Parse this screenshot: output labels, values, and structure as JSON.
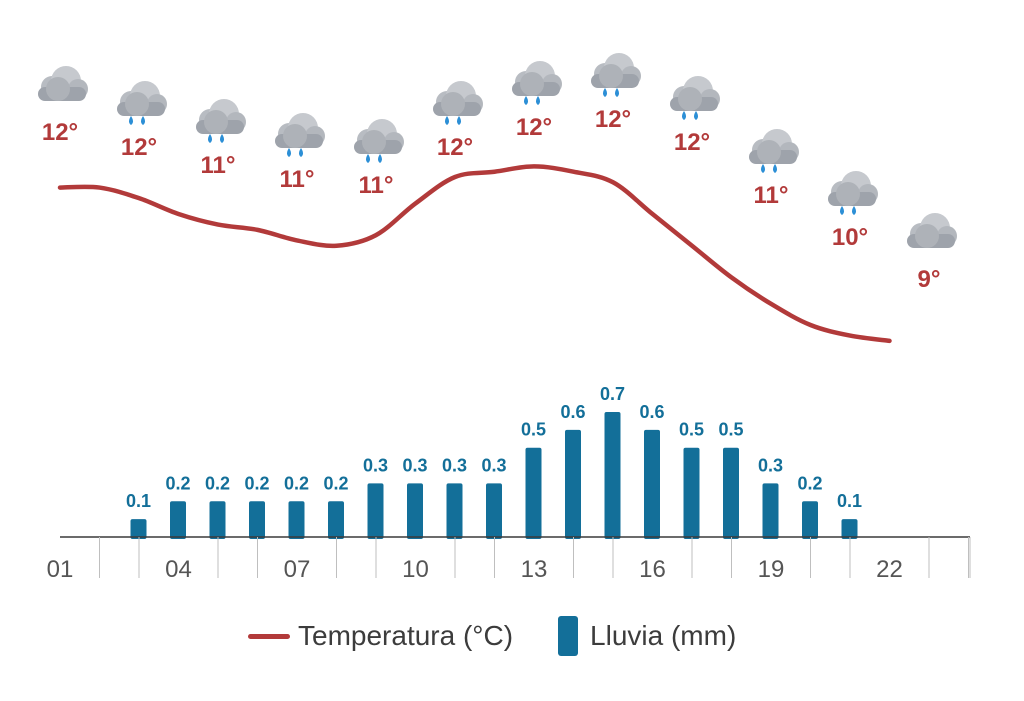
{
  "colors": {
    "temperature": "#b23a3a",
    "rain": "#136f99",
    "axis": "#3a3a3a",
    "tick_text": "#555555"
  },
  "chart_data": {
    "type": "line+bar",
    "x": [
      "01",
      "02",
      "03",
      "04",
      "05",
      "06",
      "07",
      "08",
      "09",
      "10",
      "11",
      "12",
      "13",
      "14",
      "15",
      "16",
      "17",
      "18",
      "19",
      "20",
      "21",
      "22",
      "23",
      "24"
    ],
    "xticks": [
      "01",
      "04",
      "07",
      "10",
      "13",
      "16",
      "19",
      "22"
    ],
    "series": [
      {
        "name": "Temperatura (°C)",
        "type": "line",
        "points": [
          {
            "x": "01",
            "y": 12.1
          },
          {
            "x": "02",
            "y": 12.1
          },
          {
            "x": "03",
            "y": 11.9
          },
          {
            "x": "04",
            "y": 11.6
          },
          {
            "x": "05",
            "y": 11.4
          },
          {
            "x": "06",
            "y": 11.3
          },
          {
            "x": "07",
            "y": 11.1
          },
          {
            "x": "08",
            "y": 11.0
          },
          {
            "x": "09",
            "y": 11.2
          },
          {
            "x": "10",
            "y": 11.8
          },
          {
            "x": "11",
            "y": 12.3
          },
          {
            "x": "12",
            "y": 12.4
          },
          {
            "x": "13",
            "y": 12.5
          },
          {
            "x": "14",
            "y": 12.4
          },
          {
            "x": "15",
            "y": 12.2
          },
          {
            "x": "16",
            "y": 11.6
          },
          {
            "x": "17",
            "y": 11.0
          },
          {
            "x": "18",
            "y": 10.4
          },
          {
            "x": "19",
            "y": 9.9
          },
          {
            "x": "20",
            "y": 9.5
          },
          {
            "x": "21",
            "y": 9.3
          },
          {
            "x": "22",
            "y": 9.2
          }
        ]
      },
      {
        "name": "Lluvia (mm)",
        "type": "bar",
        "points": [
          {
            "x": "03",
            "y": 0.1
          },
          {
            "x": "04",
            "y": 0.2
          },
          {
            "x": "05",
            "y": 0.2
          },
          {
            "x": "06",
            "y": 0.2
          },
          {
            "x": "07",
            "y": 0.2
          },
          {
            "x": "08",
            "y": 0.2
          },
          {
            "x": "09",
            "y": 0.3
          },
          {
            "x": "10",
            "y": 0.3
          },
          {
            "x": "11",
            "y": 0.3
          },
          {
            "x": "12",
            "y": 0.3
          },
          {
            "x": "13",
            "y": 0.5
          },
          {
            "x": "14",
            "y": 0.6
          },
          {
            "x": "15",
            "y": 0.7
          },
          {
            "x": "16",
            "y": 0.6
          },
          {
            "x": "17",
            "y": 0.5
          },
          {
            "x": "18",
            "y": 0.5
          },
          {
            "x": "19",
            "y": 0.3
          },
          {
            "x": "20",
            "y": 0.2
          },
          {
            "x": "21",
            "y": 0.1
          }
        ]
      }
    ],
    "weather_icons": [
      {
        "x": "01",
        "icon": "cloud-icon",
        "temp_label": "12°"
      },
      {
        "x": "02",
        "icon": "rain-cloud-icon",
        "temp_label": "12°"
      },
      {
        "x": "03",
        "icon": "rain-cloud-icon",
        "temp_label": "11°"
      },
      {
        "x": "04",
        "icon": "rain-cloud-icon",
        "temp_label": "11°"
      },
      {
        "x": "05",
        "icon": "rain-cloud-icon",
        "temp_label": "11°"
      },
      {
        "x": "06",
        "icon": "rain-cloud-icon",
        "temp_label": "12°"
      },
      {
        "x": "07",
        "icon": "rain-cloud-icon",
        "temp_label": "12°"
      },
      {
        "x": "08",
        "icon": "rain-cloud-icon",
        "temp_label": "12°"
      },
      {
        "x": "09",
        "icon": "rain-cloud-icon",
        "temp_label": "12°"
      },
      {
        "x": "10",
        "icon": "rain-cloud-icon",
        "temp_label": "11°"
      },
      {
        "x": "11",
        "icon": "rain-cloud-icon",
        "temp_label": "10°"
      },
      {
        "x": "12",
        "icon": "cloud-icon",
        "temp_label": "9°"
      }
    ]
  },
  "legend": {
    "temperature": "Temperatura (°C)",
    "rain": "Lluvia (mm)"
  }
}
